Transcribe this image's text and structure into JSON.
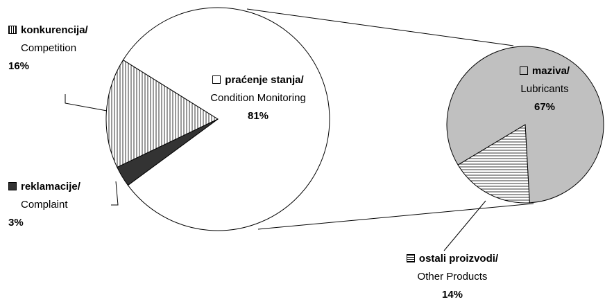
{
  "chart_data": [
    {
      "type": "pie",
      "labels": [
        "praćenje stanja/",
        "konkurencija/",
        "reklamacije/"
      ],
      "sublabels": [
        "Condition Monitoring",
        "Competition",
        "Complaint"
      ],
      "values": [
        81,
        16,
        3
      ],
      "value_labels": [
        "81%",
        "16%",
        "3%"
      ],
      "colors": [
        "#ffffff",
        "#ffffff",
        "#333333"
      ],
      "hatch": [
        null,
        "vertical",
        null
      ]
    },
    {
      "type": "pie",
      "labels": [
        "maziva/",
        "ostali proizvodi/"
      ],
      "sublabels": [
        "Lubricants",
        "Other Products"
      ],
      "values": [
        67,
        14
      ],
      "value_labels": [
        "67%",
        "14%"
      ],
      "colors": [
        "#c0c0c0",
        "#ffffff"
      ],
      "hatch": [
        null,
        "horizontal"
      ]
    }
  ]
}
